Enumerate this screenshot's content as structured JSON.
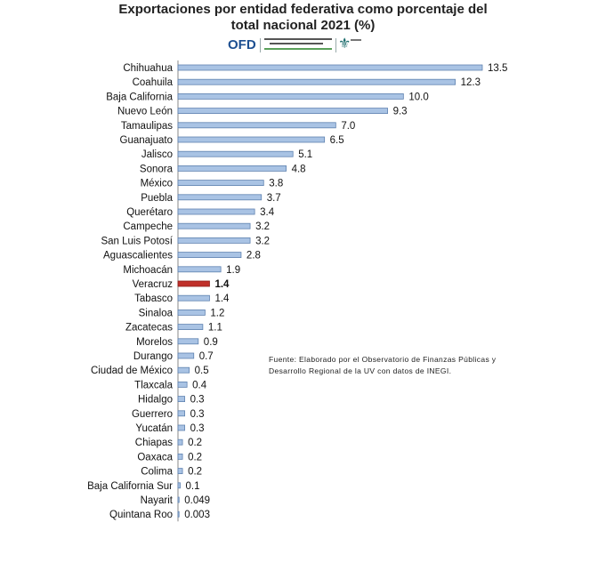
{
  "header": {
    "title_line1": "Exportaciones por entidad federativa como porcentaje del",
    "title_line2": "total nacional  2021 (%)"
  },
  "logo": {
    "text": "OFD",
    "subtitle": "Observatorio de Finanzas Públicas y Desarrollo Regional"
  },
  "source_note": "Fuente: Elaborado por el Observatorio de Finanzas Públicas y Desarrollo Regional de la UV con datos de INEGI.",
  "colors": {
    "bar": "#a9c3e4",
    "bar_edge": "#5f82b0",
    "highlight": "#c0302a",
    "highlight_edge": "#8e1f1a",
    "axis": "#8a8a8a"
  },
  "chart_data": {
    "type": "bar",
    "orientation": "horizontal",
    "highlight_category": "Veracruz",
    "categories": [
      "Chihuahua",
      "Coahuila",
      "Baja California",
      "Nuevo León",
      "Tamaulipas",
      "Guanajuato",
      "Jalisco",
      "Sonora",
      "México",
      "Puebla",
      "Querétaro",
      "Campeche",
      "San Luis Potosí",
      "Aguascalientes",
      "Michoacán",
      "Veracruz",
      "Tabasco",
      "Sinaloa",
      "Zacatecas",
      "Morelos",
      "Durango",
      "Ciudad de México",
      "Tlaxcala",
      "Hidalgo",
      "Guerrero",
      "Yucatán",
      "Chiapas",
      "Oaxaca",
      "Colima",
      "Baja California Sur",
      "Nayarit",
      "Quintana Roo"
    ],
    "values": [
      13.5,
      12.3,
      10.0,
      9.3,
      7.0,
      6.5,
      5.1,
      4.8,
      3.8,
      3.7,
      3.4,
      3.2,
      3.2,
      2.8,
      1.9,
      1.4,
      1.4,
      1.2,
      1.1,
      0.9,
      0.7,
      0.5,
      0.4,
      0.3,
      0.3,
      0.3,
      0.2,
      0.2,
      0.2,
      0.1,
      0.049,
      0.003
    ],
    "value_labels": [
      "13.5",
      "12.3",
      "10.0",
      "9.3",
      "7.0",
      "6.5",
      "5.1",
      "4.8",
      "3.8",
      "3.7",
      "3.4",
      "3.2",
      "3.2",
      "2.8",
      "1.9",
      "1.4",
      "1.4",
      "1.2",
      "1.1",
      "0.9",
      "0.7",
      "0.5",
      "0.4",
      "0.3",
      "0.3",
      "0.3",
      "0.2",
      "0.2",
      "0.2",
      "0.1",
      "0.049",
      "0.003"
    ],
    "xlim": [
      0,
      13.5
    ],
    "grid": false,
    "legend": "none"
  }
}
